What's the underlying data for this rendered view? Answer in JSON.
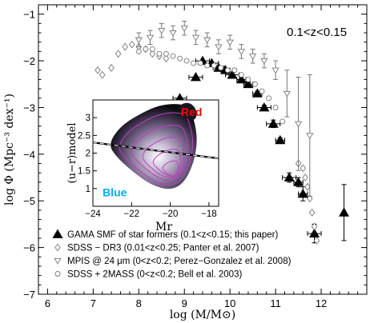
{
  "chart_data": {
    "type": "scatter",
    "title": "",
    "annotation": "0.1<z<0.15",
    "xlabel": "log (M/M⊙)",
    "ylabel": "log Φ (Mpc⁻³ dex⁻¹)",
    "xlim": [
      5.8,
      13.0
    ],
    "ylim": [
      -7,
      -0.8
    ],
    "xticks": [
      6,
      7,
      8,
      9,
      10,
      11,
      12
    ],
    "yticks": [
      -7,
      -6,
      -5,
      -4,
      -3,
      -2,
      -1
    ],
    "xtick_labels": [
      "6",
      "7",
      "8",
      "9",
      "10",
      "11",
      "12"
    ],
    "ytick_labels": [
      "−7",
      "−6",
      "−5",
      "−4",
      "−3",
      "−2",
      "−1"
    ],
    "legend_position": "bottom-left",
    "series": [
      {
        "name": "GAMA SMF of star formers (0.1<z<0.15; this paper)",
        "marker": "filled-triangle",
        "x": [
          8.9,
          9.25,
          9.4,
          9.6,
          9.75,
          9.9,
          10.05,
          10.25,
          10.4,
          10.6,
          10.75,
          10.95,
          11.1,
          11.3,
          11.5,
          11.6,
          11.85,
          12.5
        ],
        "y": [
          -2.8,
          -2.35,
          -2.0,
          -2.05,
          -2.15,
          -2.2,
          -2.3,
          -2.4,
          -2.5,
          -2.7,
          -3.0,
          -3.35,
          -3.7,
          -4.5,
          -4.6,
          -4.85,
          -5.7,
          -5.25
        ],
        "xerr": [
          0.15,
          0.15,
          0.15,
          0.15,
          0.12,
          0.1,
          0.15,
          0.1,
          0.1,
          0.1,
          0.15,
          0.15,
          0.1,
          0.15,
          0.1,
          0.1,
          0.15,
          0
        ],
        "yerr": [
          0,
          0,
          0,
          0,
          0,
          0,
          0,
          0,
          0.05,
          0.05,
          0.05,
          0.08,
          0.05,
          0.1,
          0.1,
          0.15,
          0.2,
          0.6
        ]
      },
      {
        "name": "SDSS − DR3 (0.01<z<0.25; Panter et al. 2007)",
        "marker": "open-diamond",
        "x": [
          7.1,
          7.2,
          7.4,
          7.55,
          7.7,
          7.85,
          8.0,
          8.15,
          8.3,
          8.45,
          8.6,
          11.5,
          11.6,
          11.65,
          11.7,
          11.75,
          11.8,
          11.85,
          11.9
        ],
        "y": [
          -2.2,
          -2.3,
          -2.15,
          -1.85,
          -1.7,
          -1.65,
          -1.7,
          -1.75,
          -1.85,
          -1.9,
          -1.95,
          -4.2,
          -4.3,
          -4.5,
          -4.7,
          -4.95,
          -5.25,
          -5.55,
          -5.85
        ]
      },
      {
        "name": "MPIS @ 24 μm (0<z<0.2; Perez−Gonzalez et al. 2008)",
        "marker": "open-down-triangle",
        "x": [
          8.0,
          8.25,
          8.5,
          8.75,
          9.0,
          9.25,
          9.5,
          9.75,
          10.0,
          10.25,
          10.5,
          10.75,
          11.0,
          11.25,
          11.5,
          11.75
        ],
        "y": [
          -1.55,
          -1.5,
          -1.35,
          -1.4,
          -1.3,
          -1.5,
          -1.55,
          -1.7,
          -1.6,
          -1.8,
          -1.9,
          -2.0,
          -2.2,
          -2.7,
          -3.35,
          -3.6
        ],
        "yerr": [
          0.15,
          0.15,
          0.15,
          0.15,
          0.15,
          0.15,
          0.15,
          0.15,
          0.15,
          0.15,
          0.15,
          0.15,
          0.2,
          0.5,
          1.0,
          1.3
        ]
      },
      {
        "name": "SDSS + 2MASS (0<z<0.2; Bell et al. 2003)",
        "marker": "open-circle",
        "x": [
          8.0,
          8.15,
          8.3,
          8.45,
          8.6,
          8.75,
          8.9,
          9.05,
          9.2,
          9.35,
          9.5,
          9.65,
          9.8,
          9.95,
          10.1,
          10.25,
          10.4,
          10.55,
          10.7,
          10.85,
          11.0,
          11.15
        ],
        "y": [
          -1.8,
          -1.75,
          -1.75,
          -1.85,
          -1.85,
          -1.9,
          -1.95,
          -2.0,
          -2.05,
          -2.05,
          -2.1,
          -2.1,
          -2.15,
          -2.2,
          -2.2,
          -2.3,
          -2.4,
          -2.5,
          -2.65,
          -2.8,
          -3.0,
          -3.3
        ]
      }
    ],
    "inset": {
      "type": "contour",
      "xlabel": "Mr",
      "ylabel": "(u−r)model",
      "xlim": [
        -24,
        -17.5
      ],
      "ylim": [
        0.5,
        3.5
      ],
      "xticks": [
        -24,
        -22,
        -20,
        -18
      ],
      "yticks": [
        1,
        1.5,
        2,
        2.5,
        3
      ],
      "xtick_labels": [
        "−24",
        "−22",
        "−20",
        "−18"
      ],
      "ytick_labels": [
        "1",
        "1.5",
        "2",
        "2.5",
        "3"
      ],
      "divider_line": {
        "x": [
          -24,
          -17.5
        ],
        "y": [
          2.3,
          1.85
        ]
      },
      "labels": {
        "red": "Red",
        "blue": "Blue"
      },
      "colors": {
        "red": "#ff0000",
        "blue": "#00b0f0",
        "contour_line": "#c040c0"
      }
    }
  }
}
